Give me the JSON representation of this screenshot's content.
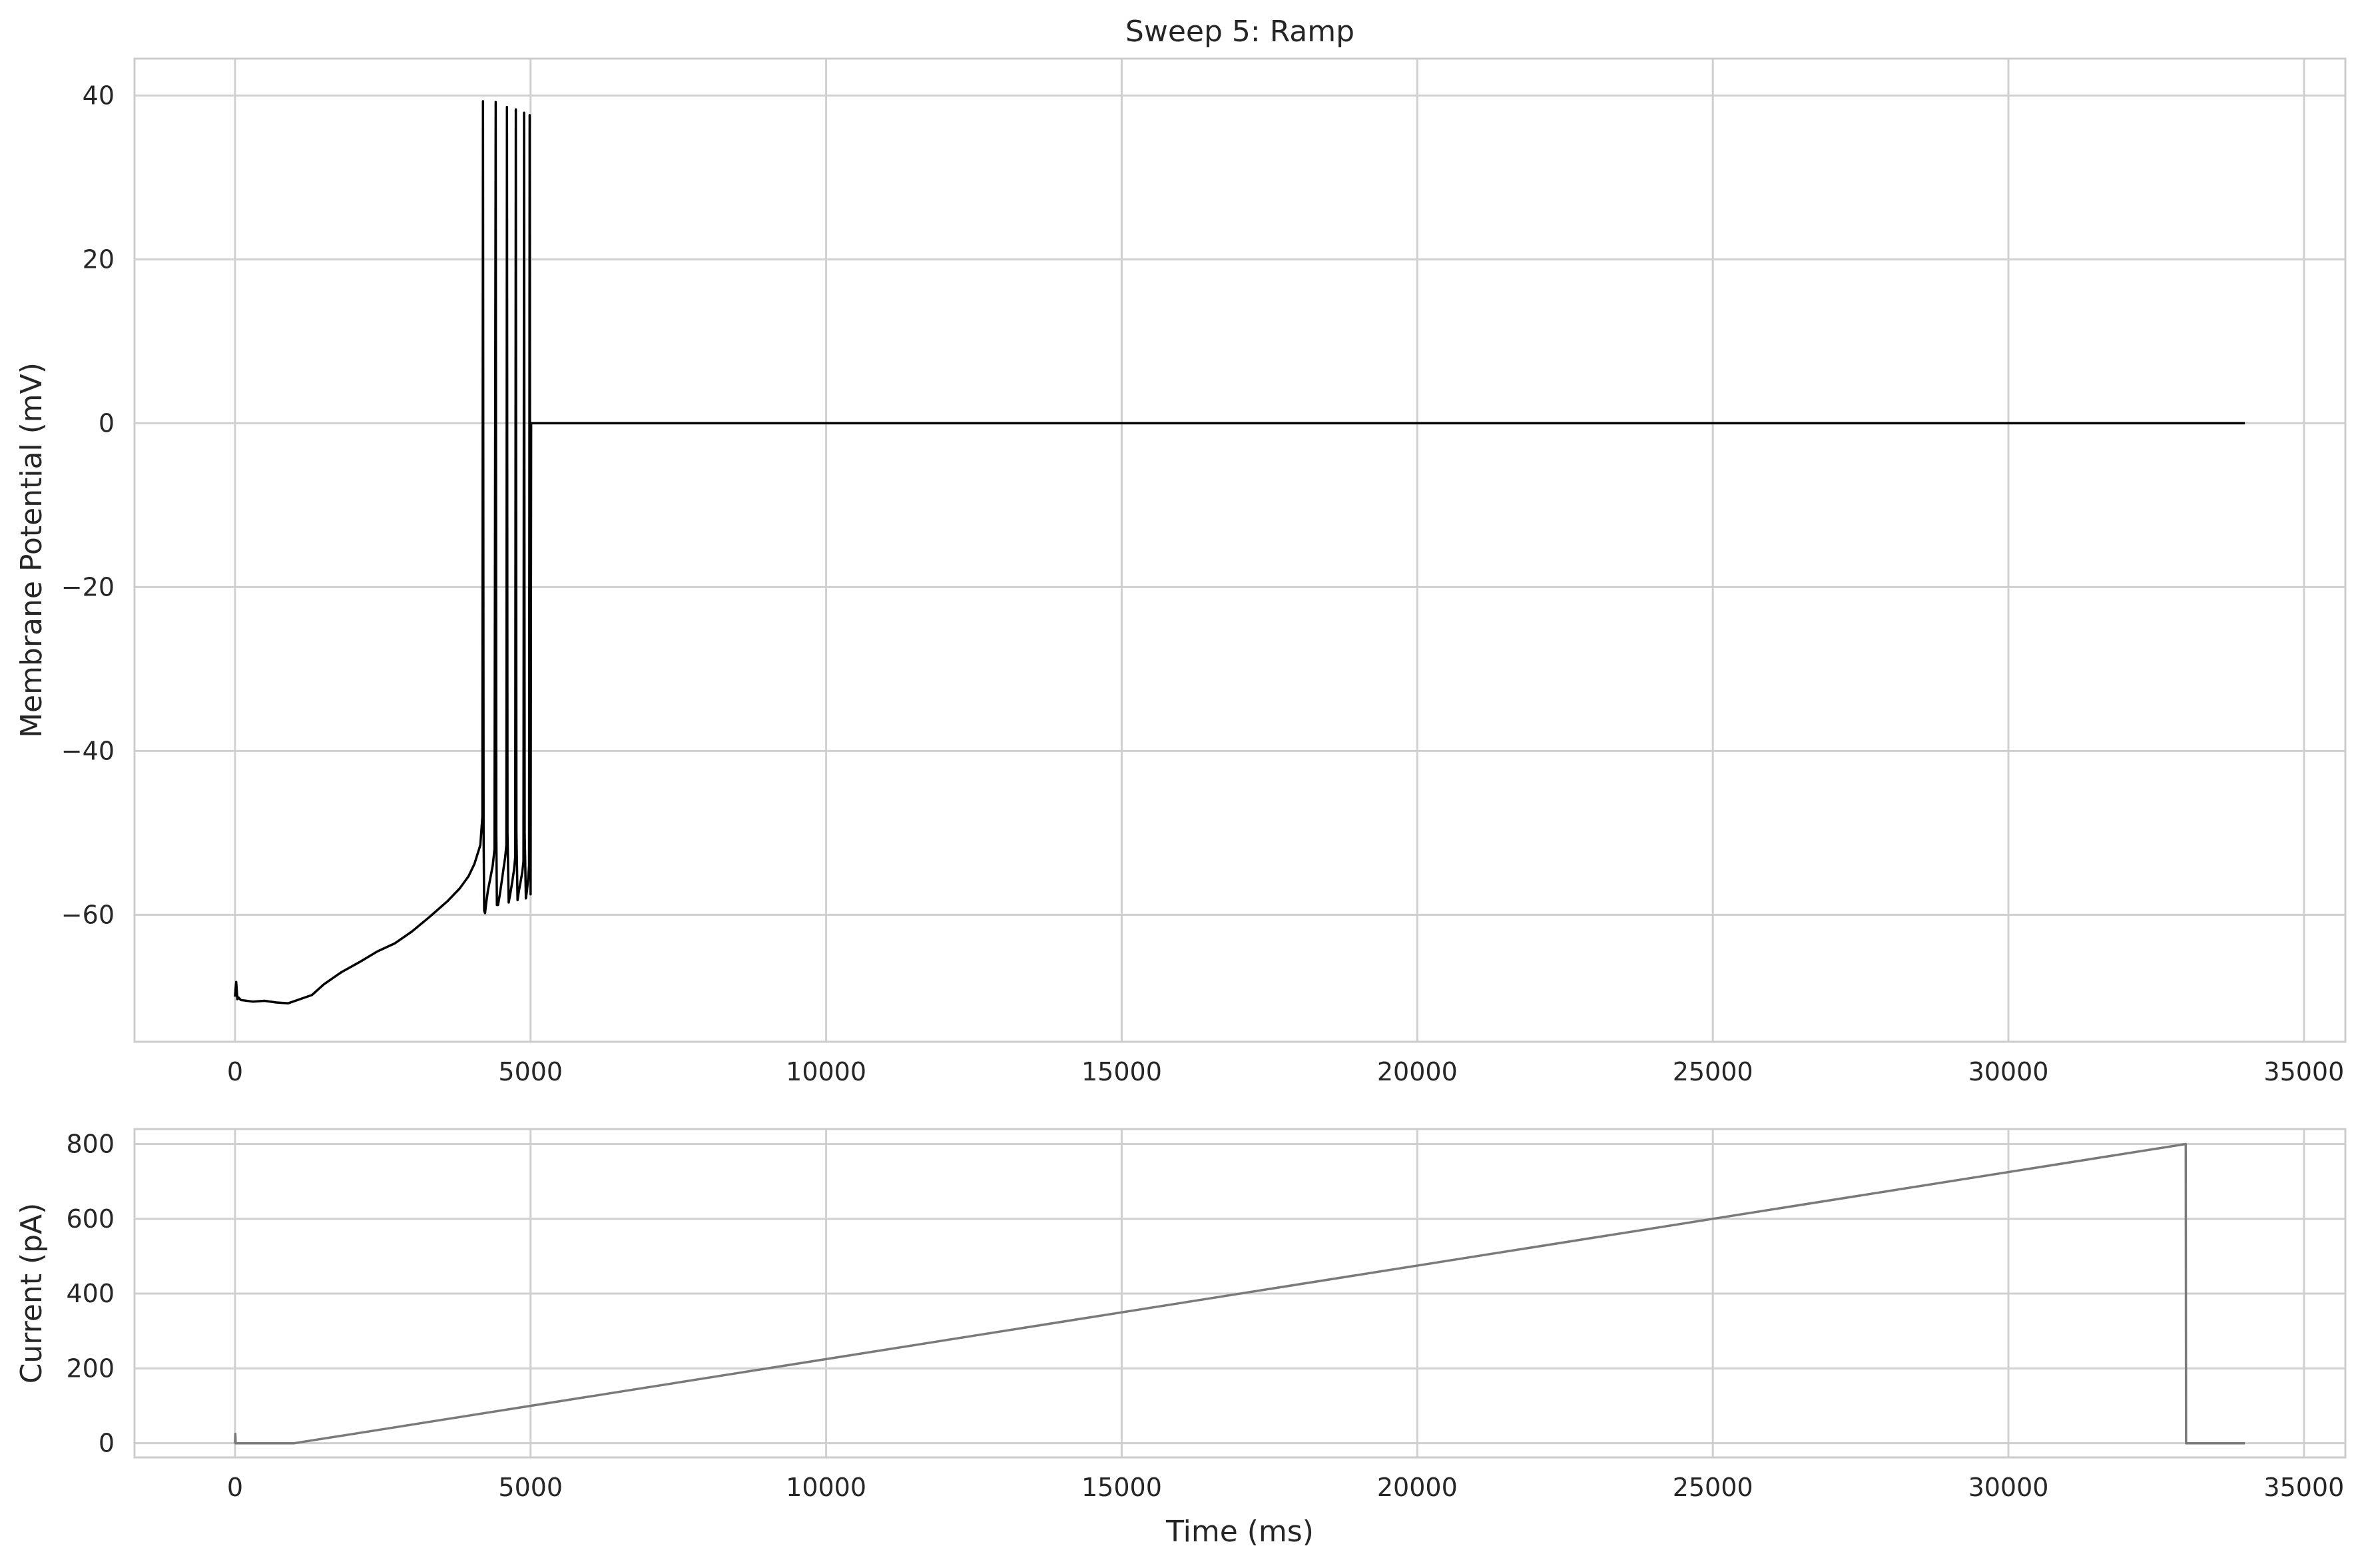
{
  "chart_data": [
    {
      "id": "voltage",
      "type": "line",
      "title": "Sweep 5: Ramp",
      "xlabel": "",
      "ylabel": "Membrane Potential (mV)",
      "xlim": [
        -1700,
        35700
      ],
      "ylim": [
        -75.5,
        44.5
      ],
      "xticks": [
        0,
        5000,
        10000,
        15000,
        20000,
        25000,
        30000,
        35000
      ],
      "yticks": [
        -60,
        -40,
        -20,
        0,
        20,
        40
      ],
      "grid": true,
      "color": "#000000",
      "series": [
        {
          "x": [
            0,
            20,
            40,
            60,
            100,
            300,
            500,
            700,
            900,
            1100,
            1300,
            1500,
            1800,
            2100,
            2400,
            2700,
            3000,
            3300,
            3600,
            3800,
            3950,
            4050,
            4150,
            4185,
            4195,
            4205,
            4215,
            4230,
            4250,
            4280,
            4320,
            4360,
            4390,
            4410,
            4420,
            4430,
            4450,
            4480,
            4510,
            4540,
            4570,
            4590,
            4600,
            4610,
            4630,
            4660,
            4690,
            4720,
            4740,
            4750,
            4760,
            4780,
            4800,
            4830,
            4860,
            4880,
            4890,
            4900,
            4920,
            4940,
            4960,
            4975,
            4985,
            4990,
            5000,
            5010,
            34000
          ],
          "y": [
            -70,
            -68.2,
            -70.3,
            -70.1,
            -70.4,
            -70.6,
            -70.5,
            -70.7,
            -70.8,
            -70.3,
            -69.8,
            -68.5,
            -67,
            -65.8,
            -64.5,
            -63.5,
            -62,
            -60.2,
            -58.3,
            -56.8,
            -55.3,
            -53.8,
            -51.5,
            -48,
            39.3,
            -50,
            -59.5,
            -59.8,
            -58.5,
            -57,
            -55.5,
            -54,
            -52,
            39.2,
            -50,
            -58.8,
            -58.8,
            -57.5,
            -56,
            -54.5,
            -53,
            -51.5,
            38.6,
            -50,
            -58.5,
            -57.3,
            -56,
            -54.5,
            -53,
            38.3,
            -50,
            -58.2,
            -57.2,
            -56,
            -54.8,
            -53.5,
            37.9,
            -50,
            -58,
            -57,
            -55.5,
            -54,
            37.6,
            -50,
            -57.5,
            0,
            0
          ]
        }
      ]
    },
    {
      "id": "current",
      "type": "line",
      "title": "",
      "xlabel": "Time (ms)",
      "ylabel": "Current (pA)",
      "xlim": [
        -1700,
        35700
      ],
      "ylim": [
        -38,
        840
      ],
      "xticks": [
        0,
        5000,
        10000,
        15000,
        20000,
        25000,
        30000,
        35000
      ],
      "yticks": [
        0,
        200,
        400,
        600,
        800
      ],
      "grid": true,
      "color": "#7a7a7a",
      "series": [
        {
          "x": [
            0,
            5,
            10,
            20,
            1000,
            33000,
            33005,
            34000
          ],
          "y": [
            0,
            25,
            0,
            0,
            0,
            800,
            0,
            0
          ]
        }
      ]
    }
  ]
}
